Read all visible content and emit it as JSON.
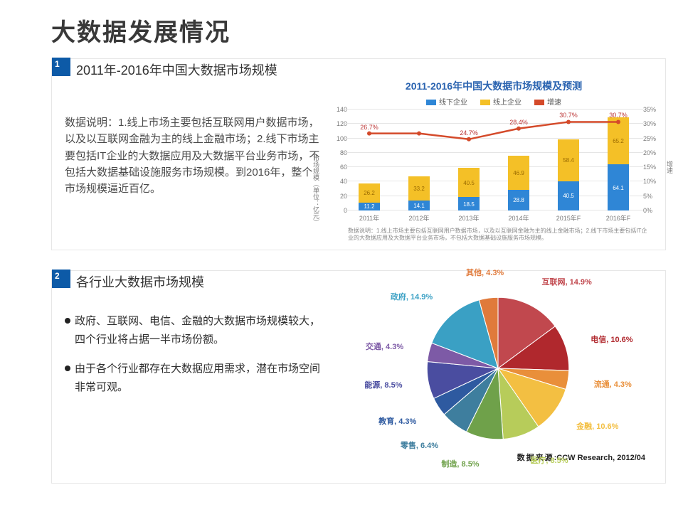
{
  "page_title": "大数据发展情况",
  "panel1": {
    "num": "1",
    "heading": "2011年-2016年中国大数据市场规模",
    "body": "数据说明：1.线上市场主要包括互联网用户数据市场，以及以互联网金融为主的线上金融市场；2.线下市场主要包括IT企业的大数据应用及大数据平台业务市场，不包括大数据基础设施服务市场规模。到2016年，整个市场规模逼近百亿。",
    "chart": {
      "title": "2011-2016年中国大数据市场规模及预测",
      "legend": [
        {
          "label": "线下企业",
          "color": "#2f86d6"
        },
        {
          "label": "线上企业",
          "color": "#f4c027"
        },
        {
          "label": "增速",
          "color": "#d44a2a"
        }
      ],
      "y_left": {
        "max": 140,
        "ticks": [
          0,
          20,
          40,
          60,
          80,
          100,
          120,
          140
        ],
        "label": "市场规模（单位：亿元）"
      },
      "y_right": {
        "max": 35,
        "ticks": [
          0,
          5,
          10,
          15,
          20,
          25,
          30,
          35
        ],
        "label": "增速"
      },
      "categories": [
        "2011年",
        "2012年",
        "2013年",
        "2014年",
        "2015年F",
        "2016年F"
      ],
      "offline": [
        11.2,
        14.1,
        18.5,
        28.8,
        40.5,
        64.1
      ],
      "online": [
        26.2,
        33.2,
        40.5,
        46.9,
        58.4,
        65.2
      ],
      "growth_pct": [
        26.7,
        26.7,
        24.7,
        28.4,
        30.7,
        30.7
      ],
      "note": "数据说明：1.线上市场主要包括互联网用户数据市场，以及以互联网金融为主的线上金融市场；2.线下市场主要包括IT企业的大数据应用及大数据平台业务市场，不包括大数据基础设施服务市场规模。",
      "bar_width_pct": 7
    }
  },
  "panel2": {
    "num": "2",
    "heading": "各行业大数据市场规模",
    "bullets": [
      "政府、互联网、电信、金融的大数据市场规模较大，四个行业将占据一半市场份额。",
      "由于各个行业都存在大数据应用需求，潜在市场空间非常可观。"
    ],
    "pie": {
      "source_label": "数据来源",
      "source_value": ":CCW Research, 2012/04",
      "slices": [
        {
          "label": "互联网",
          "pct": 14.9,
          "color": "#c1484e"
        },
        {
          "label": "电信",
          "pct": 10.6,
          "color": "#b0282d"
        },
        {
          "label": "流通",
          "pct": 4.3,
          "color": "#e98f3a"
        },
        {
          "label": "金融",
          "pct": 10.6,
          "color": "#f3bf42"
        },
        {
          "label": "医疗",
          "pct": 8.5,
          "color": "#b7cc5a"
        },
        {
          "label": "制造",
          "pct": 8.5,
          "color": "#6fa14a"
        },
        {
          "label": "零售",
          "pct": 6.4,
          "color": "#3e7e9e"
        },
        {
          "label": "教育",
          "pct": 4.3,
          "color": "#2e5aa0"
        },
        {
          "label": "能源",
          "pct": 8.5,
          "color": "#4a4da0"
        },
        {
          "label": "交通",
          "pct": 4.3,
          "color": "#7d5aa6"
        },
        {
          "label": "政府",
          "pct": 14.9,
          "color": "#3aa0c4"
        },
        {
          "label": "其他",
          "pct": 4.3,
          "color": "#e07a3b"
        }
      ]
    }
  }
}
